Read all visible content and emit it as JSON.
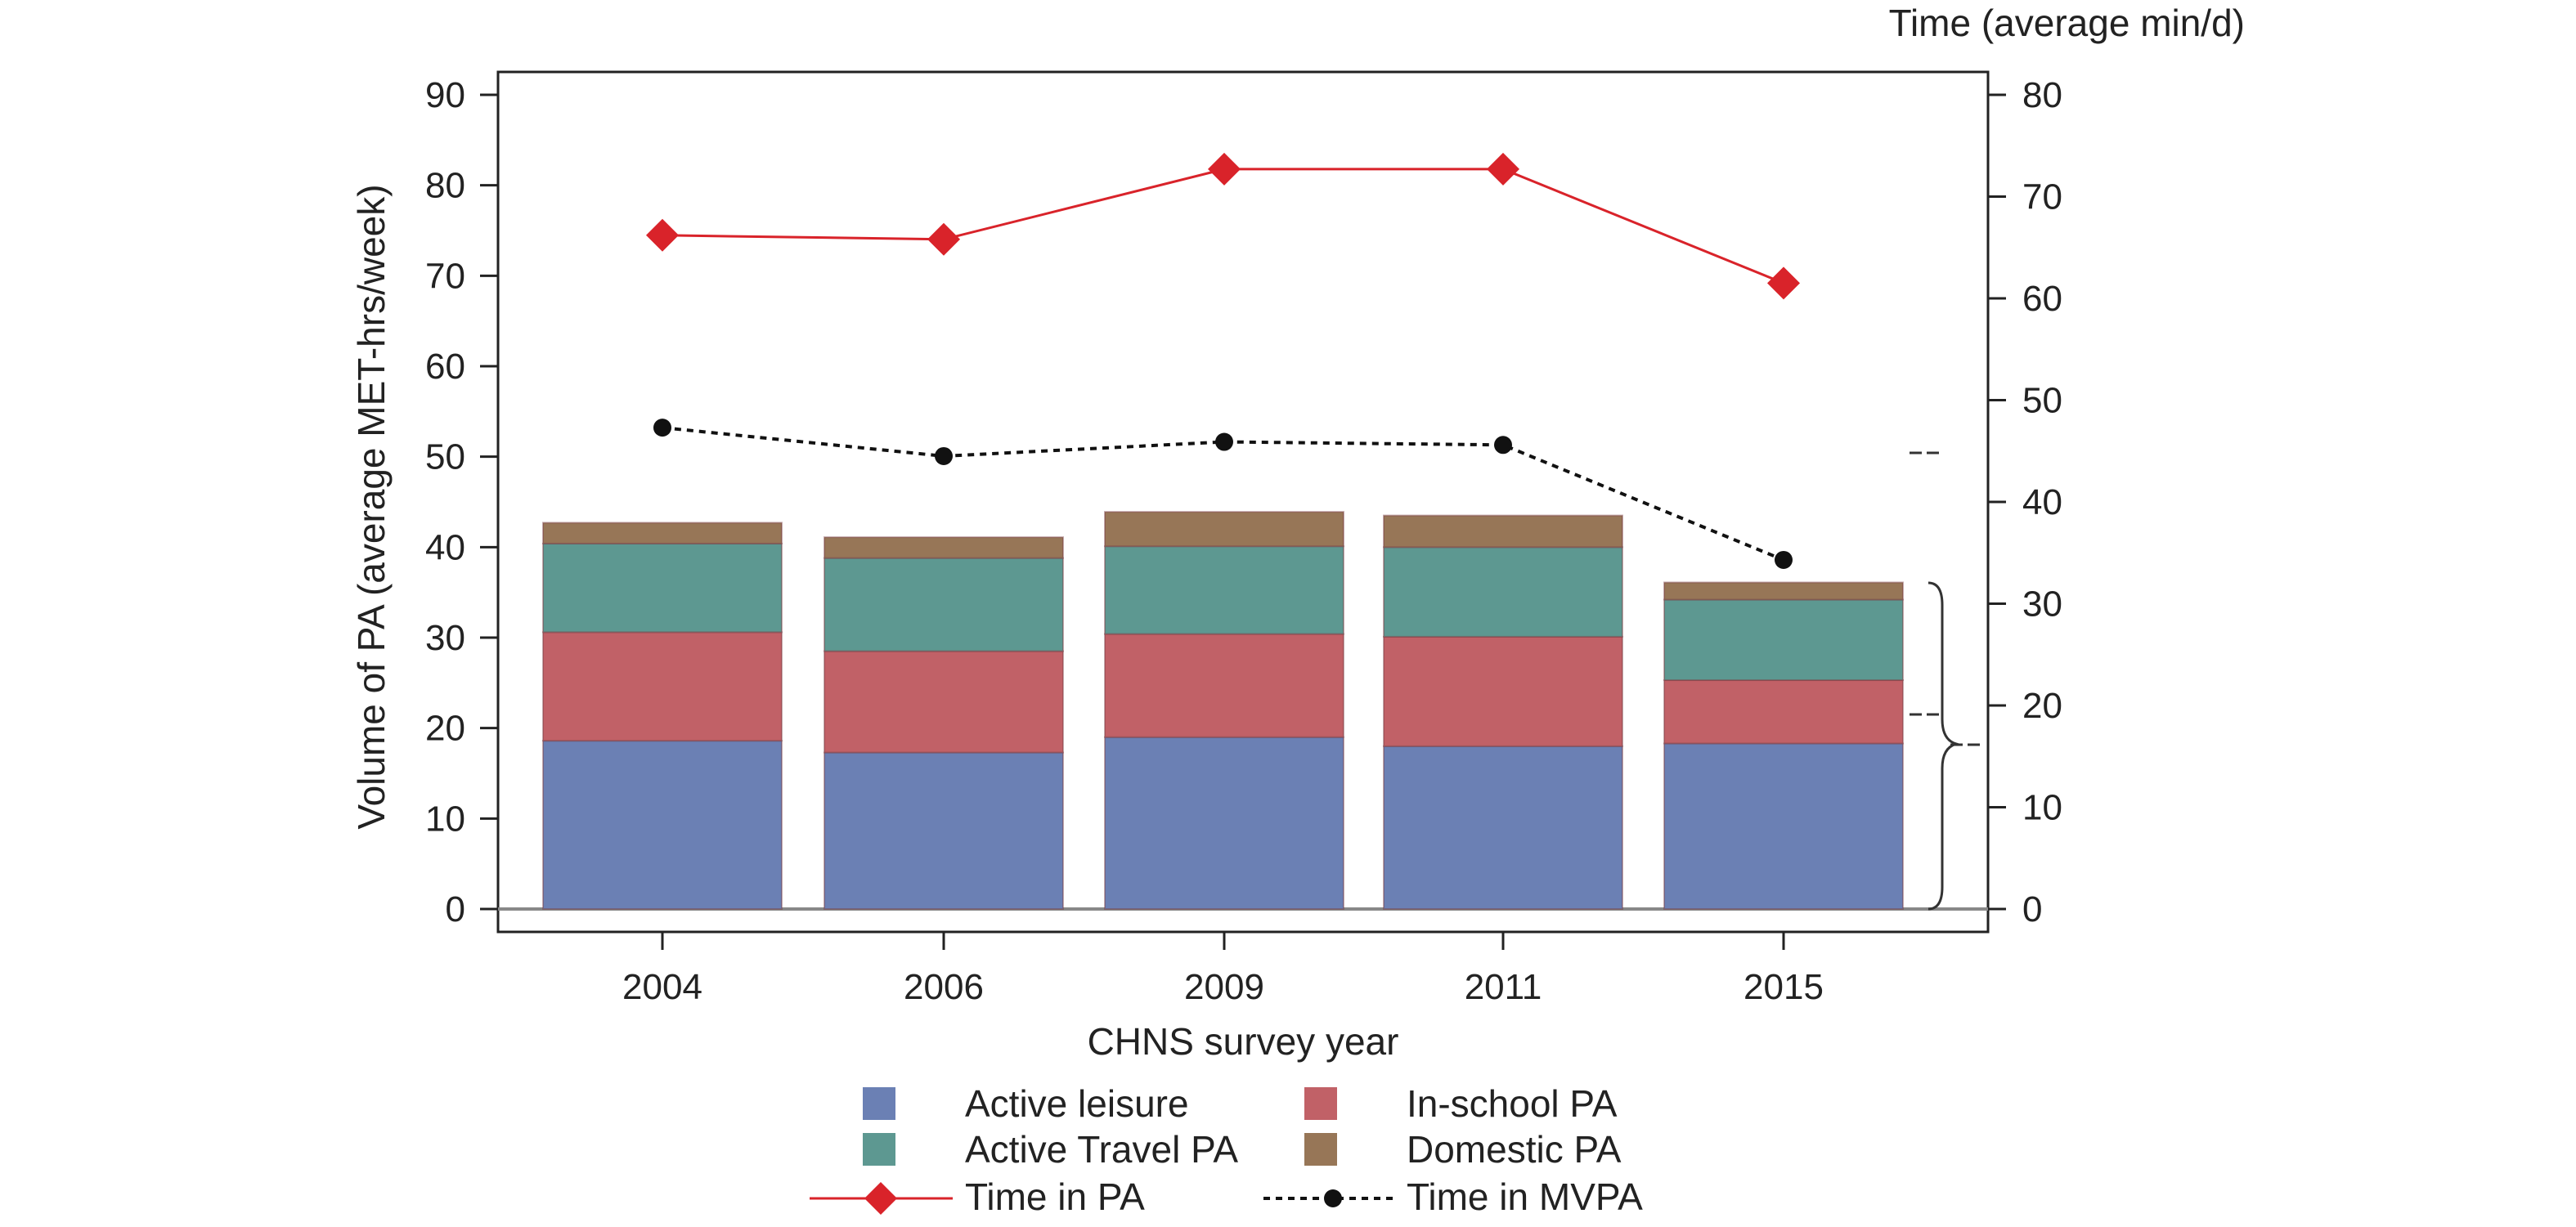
{
  "chart_data": {
    "type": "bar",
    "title": "",
    "xlabel": "CHNS survey year",
    "ylabel": "Volume of PA (average MET-hrs/week)",
    "y2label": "Time (average min/d)",
    "categories": [
      "2004",
      "2006",
      "2009",
      "2011",
      "2015"
    ],
    "ylim": [
      0,
      90
    ],
    "y2lim": [
      0,
      80
    ],
    "yticks": [
      "0",
      "10",
      "20",
      "30",
      "40",
      "50",
      "60",
      "70",
      "80",
      "90"
    ],
    "y2ticks": [
      "0",
      "10",
      "20",
      "30",
      "40",
      "50",
      "60",
      "70",
      "80"
    ],
    "stacked": true,
    "series": [
      {
        "name": "Active leisure",
        "color": "#6b80b4",
        "values": [
          18.6,
          17.3,
          19.0,
          18.0,
          18.3
        ]
      },
      {
        "name": "In-school PA",
        "color": "#c16167",
        "values": [
          12.0,
          11.2,
          11.4,
          12.1,
          7.0
        ]
      },
      {
        "name": "Active Travel PA",
        "color": "#5d9891",
        "values": [
          9.8,
          10.3,
          9.7,
          9.9,
          8.9
        ]
      },
      {
        "name": "Domestic PA",
        "color": "#977657",
        "values": [
          2.3,
          2.3,
          3.8,
          3.5,
          1.9
        ]
      }
    ],
    "lines": [
      {
        "name": "Time in PA",
        "color": "#d9232a",
        "axis": "right",
        "marker": "diamond",
        "values": [
          66.2,
          65.8,
          72.7,
          72.7,
          61.5
        ]
      },
      {
        "name": "Time in MVPA",
        "color": "#111111",
        "axis": "right",
        "marker": "circle",
        "style": "dotted",
        "values": [
          47.3,
          44.5,
          45.9,
          45.6,
          34.3
        ]
      }
    ],
    "legend": {
      "placement": "bottom",
      "columns": 2
    },
    "grid": false
  }
}
